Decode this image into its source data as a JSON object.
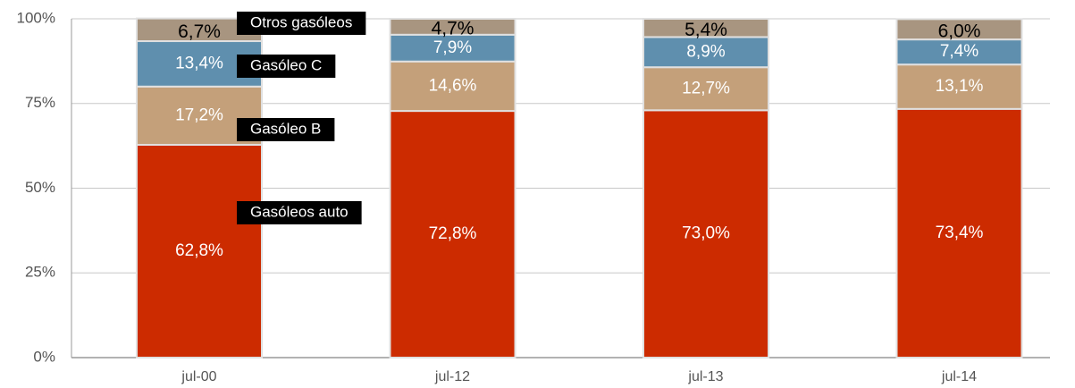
{
  "chart_data": {
    "type": "stacked_bar",
    "categories": [
      "jul-00",
      "jul-12",
      "jul-13",
      "jul-14"
    ],
    "series": [
      {
        "name": "Gasóleos auto",
        "color": "#cc2b00",
        "label_color": "#ffffff",
        "values": [
          62.8,
          72.8,
          73.0,
          73.4
        ],
        "value_labels": [
          "62,8%",
          "72,8%",
          "73,0%",
          "73,4%"
        ]
      },
      {
        "name": "Gasóleo B",
        "color": "#c4a07a",
        "label_color": "#ffffff",
        "values": [
          17.2,
          14.6,
          12.7,
          13.1
        ],
        "value_labels": [
          "17,2%",
          "14,6%",
          "12,7%",
          "13,1%"
        ]
      },
      {
        "name": "Gasóleo C",
        "color": "#5f8fae",
        "label_color": "#ffffff",
        "values": [
          13.4,
          7.9,
          8.9,
          7.4
        ],
        "value_labels": [
          "13,4%",
          "7,9%",
          "8,9%",
          "7,4%"
        ]
      },
      {
        "name": "Otros gasóleos",
        "color": "#a89580",
        "label_color": "#000000",
        "values": [
          6.7,
          4.7,
          5.4,
          6.0
        ],
        "value_labels": [
          "6,7%",
          "4,7%",
          "5,4%",
          "6,0%"
        ]
      }
    ],
    "ylim": [
      0,
      100
    ],
    "yticks": [
      {
        "value": 0,
        "label": "0%"
      },
      {
        "value": 25,
        "label": "25%"
      },
      {
        "value": 50,
        "label": "50%"
      },
      {
        "value": 75,
        "label": "75%"
      },
      {
        "value": 100,
        "label": "100%"
      }
    ],
    "grid": true
  }
}
